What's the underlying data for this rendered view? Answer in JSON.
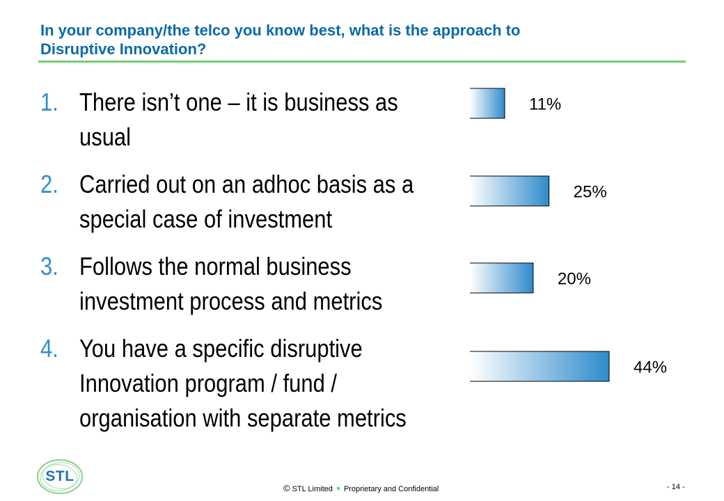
{
  "slide": {
    "title_line1": "In your company/the telco you know best, what is the approach to",
    "title_line2": "Disruptive Innovation?"
  },
  "questions": [
    {
      "number": "1.",
      "lines": [
        "There isn’t one – it is business as",
        "usual"
      ]
    },
    {
      "number": "2.",
      "lines": [
        "Carried out on an adhoc basis as a",
        "special case of investment"
      ]
    },
    {
      "number": "3.",
      "lines": [
        "Follows the normal business",
        "investment process and metrics"
      ]
    },
    {
      "number": "4.",
      "lines": [
        "You have a specific disruptive",
        "Innovation program / fund /",
        "organisation with separate metrics"
      ]
    }
  ],
  "chart_data": {
    "type": "bar",
    "orientation": "horizontal",
    "categories": [
      "1",
      "2",
      "3",
      "4"
    ],
    "values": [
      11,
      25,
      20,
      44
    ],
    "value_labels": [
      "11%",
      "25%",
      "20%",
      "44%"
    ],
    "unit": "%",
    "xlim": [
      0,
      50
    ],
    "grid": false,
    "legend": "none",
    "bar_gradient": [
      "#ffffff",
      "#2e8bcc"
    ]
  },
  "footer": {
    "copyright_symbol": "©",
    "company": "STL Limited",
    "confidential": "Proprietary and Confidential",
    "page": "- 14 -"
  },
  "logo": {
    "text": "STL",
    "ring_color": "#8fd694"
  },
  "colors": {
    "title": "#0a6aa8",
    "rule": "#6ecf73",
    "numbers": "#2f8fc9"
  }
}
